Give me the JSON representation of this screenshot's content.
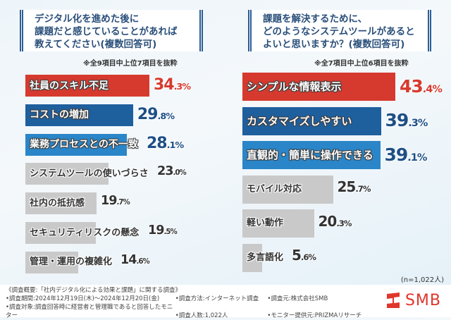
{
  "chart_data": [
    {
      "type": "bar",
      "orientation": "horizontal",
      "title": "デジタル化を進めた後に課題だと感じていることがあれば教えてください(複数回答可)",
      "title_lines": [
        "デジタル化を進めた後に",
        "課題だと感じていることがあれば",
        "教えてください(複数回答可)"
      ],
      "note": "※全9項目中上位7項目を抜粋",
      "unit": "%",
      "categories": [
        "社員のスキル不足",
        "コストの増加",
        "業務プロセスとの不一致",
        "システムツールの使いづらさ",
        "社内の抵抗感",
        "セキュリティリスクの懸念",
        "管理・運用の複雑化"
      ],
      "values": [
        34.3,
        29.8,
        28.1,
        23.0,
        19.7,
        19.5,
        14.6
      ],
      "bar_colors": [
        "#d63a2f",
        "#1e5f9e",
        "#2a86c8",
        "#c9c9c9",
        "#c9c9c9",
        "#c9c9c9",
        "#c9c9c9"
      ],
      "value_colors": [
        "#d63a2f",
        "#1e4f86",
        "#1e4f86",
        "#333333",
        "#333333",
        "#333333",
        "#333333"
      ]
    },
    {
      "type": "bar",
      "orientation": "horizontal",
      "title": "課題を解決するために、どのようなシステムツールがあるとよいと思いますか?(複数回答可)",
      "title_lines": [
        "課題を解決するために、",
        "どのようなシステムツールがあると",
        "よいと思いますか？(複数回答可)"
      ],
      "note": "※全7項目中上位6項目を抜粋",
      "unit": "%",
      "categories": [
        "シンプルな情報表示",
        "カスタマイズしやすい",
        "直観的・簡単に操作できる",
        "モバイル対応",
        "軽い動作",
        "多言語化"
      ],
      "values": [
        43.4,
        39.3,
        39.1,
        25.7,
        20.3,
        5.6
      ],
      "bar_colors": [
        "#d63a2f",
        "#1e5f9e",
        "#2a86c8",
        "#c9c9c9",
        "#c9c9c9",
        "#c9c9c9"
      ],
      "value_colors": [
        "#d63a2f",
        "#1e4f86",
        "#1e4f86",
        "#333333",
        "#333333",
        "#333333"
      ]
    }
  ],
  "sample_size": "(n=1,022人)",
  "footer": {
    "summary": "《調査概要:「社内デジタル化による効果と課題」に関する調査》",
    "period": "•調査期間:2024年12月19日(木)～2024年12月20日(金)",
    "method": "•調査方法:インターネット調査",
    "source": "•調査元:株式会社SMB",
    "target": "•調査対象:調査回答時に経営者と管理職であると回答したモニター",
    "count": "•調査人数:1,022人",
    "provider": "•モニター提供元:PRIZMAリサーチ"
  },
  "logo": {
    "text": "SMB",
    "color": "#e0362c"
  }
}
